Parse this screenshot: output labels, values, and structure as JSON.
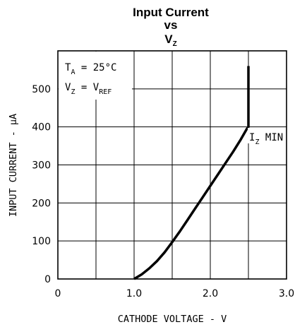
{
  "chart_data": {
    "type": "line",
    "title": {
      "line1": "Input Current",
      "line2": "vs",
      "line3_main": "V",
      "line3_sub": "Z"
    },
    "xlabel": "CATHODE VOLTAGE - V",
    "ylabel": "INPUT CURRENT - µA",
    "xlim": [
      0,
      3.0
    ],
    "ylim": [
      0,
      600
    ],
    "x_ticks": [
      {
        "value": 0,
        "label": "0"
      },
      {
        "value": 1.0,
        "label": "1.0"
      },
      {
        "value": 2.0,
        "label": "2.0"
      },
      {
        "value": 3.0,
        "label": "3.0"
      }
    ],
    "y_ticks": [
      {
        "value": 0,
        "label": "0"
      },
      {
        "value": 100,
        "label": "100"
      },
      {
        "value": 200,
        "label": "200"
      },
      {
        "value": 300,
        "label": "300"
      },
      {
        "value": 400,
        "label": "400"
      },
      {
        "value": 500,
        "label": "500"
      }
    ],
    "x_grid": [
      0.5,
      1.0,
      1.5,
      2.0,
      2.5
    ],
    "y_grid": [
      100,
      200,
      300,
      400,
      500
    ],
    "grid": true,
    "series": [
      {
        "x": [
          1.0,
          1.1,
          1.2,
          1.3,
          1.4,
          1.5,
          1.6,
          1.7,
          1.8,
          1.9,
          2.0,
          2.1,
          2.2,
          2.3,
          2.4,
          2.48,
          2.5,
          2.5
        ],
        "y": [
          0,
          12,
          28,
          47,
          70,
          97,
          125,
          155,
          185,
          215,
          245,
          275,
          305,
          335,
          367,
          395,
          400,
          560
        ]
      }
    ],
    "conditions": {
      "ta_main": "T",
      "ta_sub": "A",
      "ta_value": " = 25°C",
      "vz_main": "V",
      "vz_sub": "Z",
      "vz_eq": " = V",
      "vz_ref": "REF"
    },
    "annotation": {
      "main": "I",
      "sub": "Z",
      "rest": " MIN"
    }
  }
}
